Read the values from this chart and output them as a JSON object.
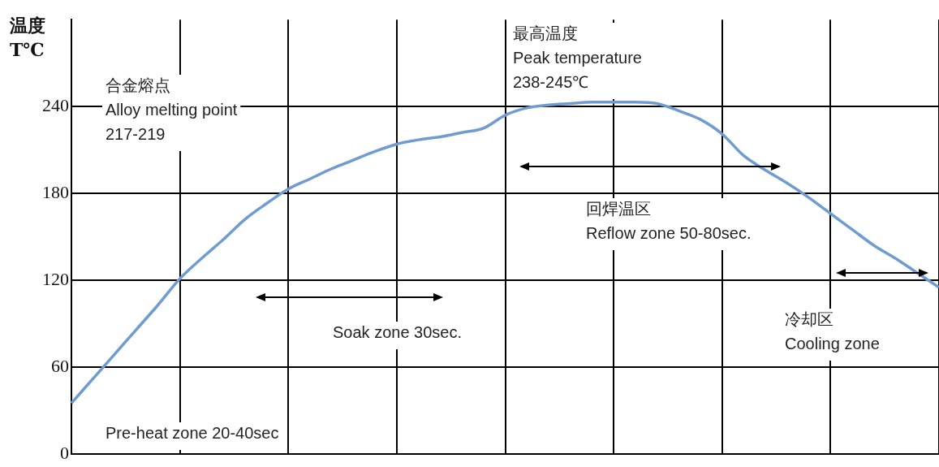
{
  "chart_data": {
    "type": "line",
    "ylabel": "温度\nT℃",
    "categories": [
      null,
      null,
      null,
      null,
      null,
      null,
      null,
      null,
      null,
      null,
      null,
      null,
      null,
      null,
      null,
      null,
      null,
      null,
      null,
      null,
      null,
      null,
      null,
      null,
      null,
      null,
      null,
      null,
      null,
      null,
      null,
      null,
      null,
      null,
      null,
      null,
      null,
      null,
      null,
      null,
      null
    ],
    "series": [
      {
        "color": "#6f9bd1",
        "values": [
          35,
          52,
          69,
          86,
          103,
          121,
          135,
          148,
          162,
          173,
          183,
          190,
          197,
          203,
          209,
          214,
          217,
          219,
          222,
          225,
          234,
          239,
          241,
          242,
          243,
          243,
          243,
          242,
          237,
          231,
          221,
          206,
          196,
          187,
          177,
          166,
          155,
          144,
          135,
          125,
          115
        ]
      }
    ],
    "ylim": [
      0,
      300
    ],
    "yticks": [
      0,
      60,
      120,
      180,
      240
    ],
    "grid": true,
    "legend": false,
    "tick_labels": "y",
    "marker": "none",
    "line_style": "solid",
    "annotations": [
      "合金熔点\nAlloy melting point\n217-219",
      "最高温度\nPeak temperature\n238-245℃",
      "回焊温区\nReflow zone 50-80sec.",
      "Soak zone 30sec.",
      "冷却区\nCooling zone",
      "Pre-heat zone 20-40sec"
    ]
  }
}
